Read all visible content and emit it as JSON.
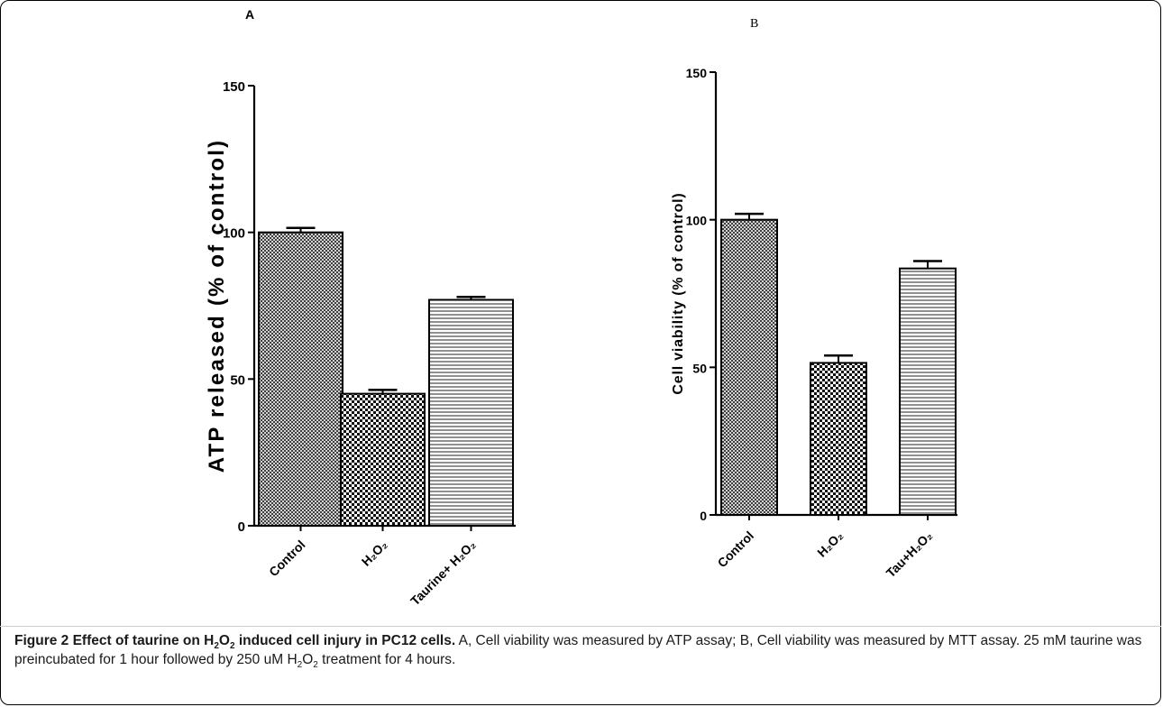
{
  "chart_data": [
    {
      "type": "bar",
      "panel_label": "A",
      "categories": [
        "Control",
        "H₂O₂",
        "Taurine+ H₂O₂"
      ],
      "values": [
        100,
        45,
        77
      ],
      "errors": [
        1.5,
        1.3,
        1
      ],
      "ylabel": "ATP released (% of control)",
      "ylim": [
        0,
        150
      ],
      "yticks": [
        0,
        50,
        100,
        150
      ],
      "patterns": [
        "crosshatch-fine",
        "checker",
        "horizontal-lines"
      ],
      "grid": false,
      "legend": "none"
    },
    {
      "type": "bar",
      "panel_label": "B",
      "categories": [
        "Control",
        "H₂O₂",
        "Tau+H₂O₂"
      ],
      "values": [
        100,
        51.5,
        83.5
      ],
      "errors": [
        2,
        2.5,
        2.5
      ],
      "ylabel": "Cell viability (% of control)",
      "ylim": [
        0,
        150
      ],
      "yticks": [
        0,
        50,
        100,
        150
      ],
      "patterns": [
        "crosshatch-fine",
        "checker",
        "horizontal-lines"
      ],
      "grid": false,
      "legend": "none"
    }
  ],
  "caption": {
    "bold_lead": "Figure 2 Effect of taurine on H",
    "bold_sub1": "2",
    "bold_mid": "O",
    "bold_sub2": "2",
    "bold_tail": " induced cell injury in PC12 cells.",
    "text_a": " A, Cell viability was measured by ATP assay; B, Cell viability was measured by MTT assay. 25 mM taurine was preincubated for 1 hour followed by 250 uM H",
    "text_sub1": "2",
    "text_mid": "O",
    "text_sub2": "2",
    "text_end": " treatment for 4 hours."
  },
  "colors": {
    "axis": "#000000",
    "bar_fill": "#ffffff",
    "pattern": "#111111"
  }
}
